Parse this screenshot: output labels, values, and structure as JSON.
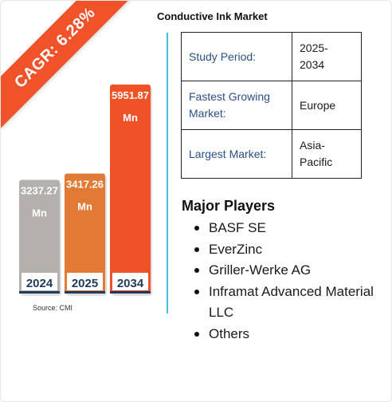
{
  "title": "Conductive Ink Market",
  "ribbon": {
    "text": "CAGR: 6.28%",
    "color": "#f0532a"
  },
  "chart_data": {
    "type": "bar",
    "title": "Conductive Ink Market",
    "categories": [
      "2024",
      "2025",
      "2034"
    ],
    "values": [
      3237.27,
      3417.26,
      5951.87
    ],
    "value_labels": [
      "3237.27",
      "3417.26",
      "5951.87"
    ],
    "unit": "Mn",
    "colors": [
      "#b4b0ab",
      "#e07a35",
      "#ee5226"
    ],
    "xlabel": "",
    "ylabel": ""
  },
  "source": "Source: CMI",
  "info_table": [
    {
      "key": "Study Period:",
      "value": "2025-\n2034"
    },
    {
      "key": "Fastest Growing Market:",
      "value": "Europe"
    },
    {
      "key": "Largest Market:",
      "value": "Asia-\nPacific"
    }
  ],
  "players": {
    "title": "Major Players",
    "items": [
      "BASF SE",
      "EverZinc",
      "Griller-Werke AG",
      "Inframat Advanced Material LLC",
      "Others"
    ]
  }
}
